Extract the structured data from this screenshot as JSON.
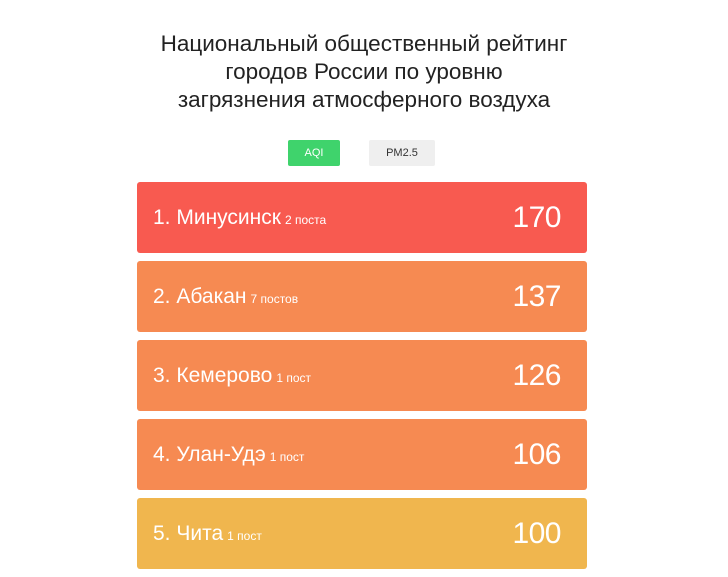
{
  "title": {
    "line1": "Национальный общественный рейтинг",
    "line2": "городов России по уровню",
    "line3": "загрязнения атмосферного воздуха"
  },
  "tabs": [
    {
      "label": "AQI",
      "active": true
    },
    {
      "label": "PM2.5",
      "active": false
    }
  ],
  "colors": {
    "tab_active": "#3fd36c",
    "tab_inactive": "#efefef"
  },
  "ranking": [
    {
      "rank_city": "1. Минусинск",
      "posts": "2 поста",
      "value": "170",
      "color": "#f85a50"
    },
    {
      "rank_city": "2. Абакан",
      "posts": "7 постов",
      "value": "137",
      "color": "#f68a52"
    },
    {
      "rank_city": "3. Кемерово",
      "posts": "1 пост",
      "value": "126",
      "color": "#f68a52"
    },
    {
      "rank_city": "4. Улан-Удэ",
      "posts": "1 пост",
      "value": "106",
      "color": "#f68a52"
    },
    {
      "rank_city": "5. Чита",
      "posts": "1 пост",
      "value": "100",
      "color": "#f0b64e"
    }
  ]
}
